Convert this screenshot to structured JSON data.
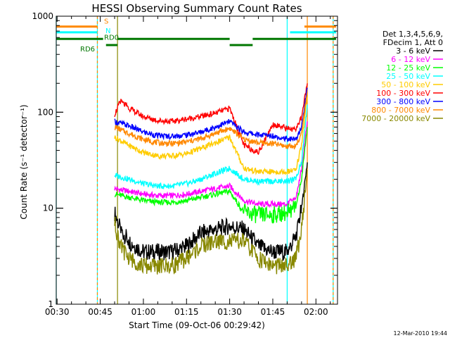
{
  "chart_data": {
    "type": "line",
    "title": "HESSI Observing Summary Count Rates",
    "xlabel": "Start Time (09-Oct-06 00:29:42)",
    "ylabel": "Count Rate (s⁻¹ detector⁻¹)",
    "y_scale": "log",
    "ylim": [
      1,
      1000
    ],
    "xlim": [
      "00:29:42",
      "02:07:30"
    ],
    "x_ticks": [
      "00:30",
      "00:45",
      "01:00",
      "01:15",
      "01:30",
      "01:45",
      "02:00"
    ],
    "y_ticks": [
      "1",
      "10",
      "100",
      "1000"
    ],
    "legend_placement": "right, outside plot",
    "legend_header": [
      "Det 1,3,4,5,6,9,",
      "FDecim 1, Att 0"
    ],
    "series": [
      {
        "name": "3 - 6 keV",
        "color": "#000000",
        "x": [
          "00:50",
          "00:52",
          "00:55",
          "01:00",
          "01:05",
          "01:10",
          "01:15",
          "01:20",
          "01:25",
          "01:30",
          "01:35",
          "01:40",
          "01:45",
          "01:50",
          "01:53",
          "01:55",
          "01:57"
        ],
        "y": [
          9,
          6,
          4.5,
          3.5,
          3.5,
          3.5,
          4,
          5.5,
          6,
          6.5,
          6,
          4,
          3.5,
          3.5,
          5,
          10,
          30
        ]
      },
      {
        "name": "6 - 12 keV",
        "color": "#ff00ff",
        "x": [
          "00:50",
          "00:55",
          "01:00",
          "01:05",
          "01:10",
          "01:15",
          "01:20",
          "01:25",
          "01:30",
          "01:35",
          "01:40",
          "01:45",
          "01:50",
          "01:53",
          "01:55",
          "01:57"
        ],
        "y": [
          16,
          15,
          14,
          13.5,
          13.5,
          14,
          15,
          16,
          17,
          12,
          11,
          11,
          11,
          13,
          25,
          80
        ]
      },
      {
        "name": "12 - 25 keV",
        "color": "#00ff00",
        "x": [
          "00:50",
          "00:55",
          "01:00",
          "01:05",
          "01:10",
          "01:15",
          "01:20",
          "01:25",
          "01:30",
          "01:35",
          "01:40",
          "01:45",
          "01:50",
          "01:53",
          "01:55",
          "01:57"
        ],
        "y": [
          14,
          13,
          12,
          11.5,
          11.5,
          12,
          13,
          14,
          15,
          9,
          8.5,
          8.5,
          9,
          10,
          20,
          70
        ]
      },
      {
        "name": "25 - 50 keV",
        "color": "#00ffff",
        "x": [
          "00:50",
          "00:55",
          "01:00",
          "01:05",
          "01:10",
          "01:15",
          "01:20",
          "01:25",
          "01:30",
          "01:35",
          "01:40",
          "01:45",
          "01:50",
          "01:53",
          "01:55",
          "01:57"
        ],
        "y": [
          22,
          20,
          18,
          17,
          17,
          18,
          20,
          23,
          26,
          20,
          19,
          19,
          19,
          20,
          30,
          120
        ]
      },
      {
        "name": "50 - 100 keV",
        "color": "#ffcc00",
        "x": [
          "00:50",
          "00:55",
          "01:00",
          "01:05",
          "01:10",
          "01:15",
          "01:20",
          "01:25",
          "01:30",
          "01:35",
          "01:40",
          "01:45",
          "01:50",
          "01:53",
          "01:55",
          "01:57"
        ],
        "y": [
          55,
          45,
          38,
          35,
          35,
          37,
          42,
          48,
          55,
          26,
          24,
          24,
          24,
          25,
          45,
          150
        ]
      },
      {
        "name": "100 - 300 keV",
        "color": "#ff0000",
        "x": [
          "00:50",
          "00:52",
          "00:55",
          "01:00",
          "01:05",
          "01:10",
          "01:15",
          "01:20",
          "01:25",
          "01:30",
          "01:35",
          "01:40",
          "01:45",
          "01:50",
          "01:53",
          "01:55",
          "01:57"
        ],
        "y": [
          95,
          130,
          110,
          90,
          82,
          80,
          85,
          90,
          98,
          110,
          45,
          38,
          75,
          68,
          65,
          90,
          200
        ]
      },
      {
        "name": "300 - 800 keV",
        "color": "#0000ff",
        "x": [
          "00:50",
          "00:55",
          "01:00",
          "01:05",
          "01:10",
          "01:15",
          "01:20",
          "01:25",
          "01:30",
          "01:35",
          "01:40",
          "01:45",
          "01:50",
          "01:53",
          "01:55",
          "01:57"
        ],
        "y": [
          80,
          72,
          62,
          57,
          56,
          58,
          62,
          70,
          80,
          62,
          58,
          57,
          53,
          52,
          70,
          180
        ]
      },
      {
        "name": "800 - 7000 keV",
        "color": "#ff8800",
        "x": [
          "00:50",
          "00:55",
          "01:00",
          "01:05",
          "01:10",
          "01:15",
          "01:20",
          "01:25",
          "01:30",
          "01:35",
          "01:40",
          "01:45",
          "01:50",
          "01:53",
          "01:55",
          "01:57"
        ],
        "y": [
          70,
          60,
          52,
          48,
          47,
          49,
          53,
          60,
          68,
          52,
          48,
          47,
          44,
          44,
          60,
          160
        ]
      },
      {
        "name": "7000 - 20000 keV",
        "color": "#888800",
        "x": [
          "00:50",
          "00:52",
          "00:55",
          "01:00",
          "01:05",
          "01:10",
          "01:15",
          "01:20",
          "01:25",
          "01:30",
          "01:35",
          "01:40",
          "01:45",
          "01:50",
          "01:53",
          "01:55",
          "01:57"
        ],
        "y": [
          7,
          4,
          3,
          2.5,
          2.5,
          2.5,
          3,
          4,
          4.5,
          4.5,
          4.5,
          3,
          2.5,
          2.5,
          3,
          6,
          25
        ]
      }
    ],
    "flag_rows": [
      {
        "label": "S",
        "color": "#ff8800",
        "level": 780,
        "segments": [
          [
            "00:29:42",
            "00:44"
          ],
          [
            "01:56",
            "02:07"
          ]
        ]
      },
      {
        "label": "N",
        "color": "#00ffff",
        "level": 680,
        "segments": [
          [
            "00:29:42",
            "00:44"
          ],
          [
            "01:51",
            "02:07"
          ]
        ]
      },
      {
        "label": "RD0",
        "color": "#007700",
        "level": 580,
        "segments": [
          [
            "00:29:42",
            "00:46"
          ],
          [
            "00:51",
            "01:30"
          ],
          [
            "01:38",
            "02:07"
          ]
        ]
      },
      {
        "label": "RD6",
        "color": "#007700",
        "level": 500,
        "segments": [
          [
            "00:47",
            "00:51"
          ],
          [
            "01:30",
            "01:38"
          ]
        ]
      }
    ],
    "vertical_markers": [
      {
        "x": "00:29:42",
        "color": "#00ffff",
        "style": "solid"
      },
      {
        "x": "00:44",
        "color": "#00ffff",
        "style": "solid"
      },
      {
        "x": "00:44",
        "color": "#ff8800",
        "style": "dashed"
      },
      {
        "x": "00:51",
        "color": "#888800",
        "style": "solid"
      },
      {
        "x": "01:50",
        "color": "#00ffff",
        "style": "solid"
      },
      {
        "x": "01:57",
        "color": "#ff8800",
        "style": "solid"
      },
      {
        "x": "02:06",
        "color": "#00ffff",
        "style": "solid"
      },
      {
        "x": "02:06",
        "color": "#ff8800",
        "style": "dashed"
      }
    ]
  },
  "footer": {
    "date": "12-Mar-2010 19:44"
  }
}
